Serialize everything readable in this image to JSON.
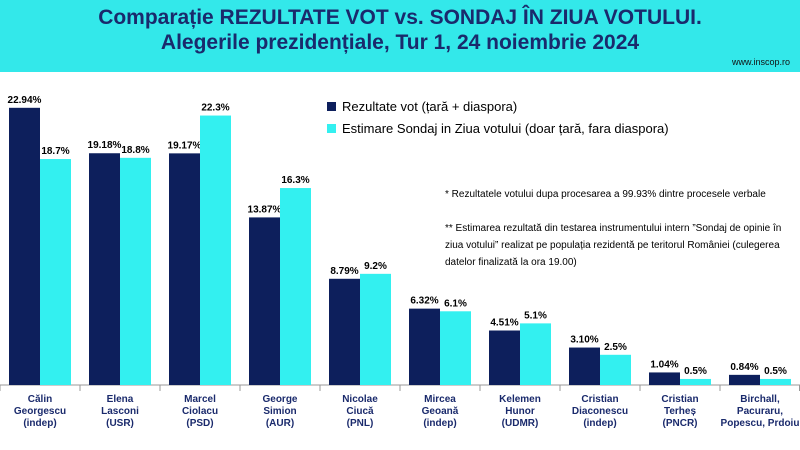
{
  "header": {
    "title_line1": "Comparație REZULTATE VOT vs. SONDAJ ÎN ZIUA VOTULUI.",
    "title_line2": "Alegerile prezidențiale, Tur 1, 24 noiembrie 2024",
    "source": "www.inscop.ro",
    "background_color": "#33e8ea",
    "title_color": "#1a2a6c"
  },
  "notes": {
    "note1": "* Rezultatele votului dupa procesarea a 99.93% dintre procesele verbale",
    "note2": "** Estimarea rezultată din testarea instrumentului intern ”Sondaj de opinie în ziua votului” realizat pe populația rezidentă pe teritorul României (culegerea datelor finalizată la ora 19.00)"
  },
  "chart_data": {
    "type": "bar",
    "categories": [
      [
        "Călin",
        "Georgescu",
        "(indep)"
      ],
      [
        "Elena",
        "Lasconi",
        "(USR)"
      ],
      [
        "Marcel",
        "Ciolacu",
        "(PSD)"
      ],
      [
        "George",
        "Simion",
        "(AUR)"
      ],
      [
        "Nicolae",
        "Ciucă",
        "(PNL)"
      ],
      [
        "Mircea",
        "Geoană",
        "(indep)"
      ],
      [
        "Kelemen",
        "Hunor",
        "(UDMR)"
      ],
      [
        "Cristian",
        "Diaconescu",
        "(indep)"
      ],
      [
        "Cristian",
        "Terheș",
        "(PNCR)"
      ],
      [
        "Birchall,",
        "Pacuraru,",
        "Popescu, Prdoiu"
      ]
    ],
    "series": [
      {
        "name": "Rezultate vot (țară + diaspora)",
        "color": "#0d1f5c",
        "values": [
          22.94,
          19.18,
          19.17,
          13.87,
          8.79,
          6.32,
          4.51,
          3.1,
          1.04,
          0.84
        ],
        "labels": [
          "22.94%",
          "19.18%",
          "19.17%",
          "13.87%",
          "8.79%",
          "6.32%",
          "4.51%",
          "3.10%",
          "1.04%",
          "0.84%"
        ]
      },
      {
        "name": "Estimare Sondaj in Ziua votului (doar țară, fara diaspora)",
        "color": "#33f0f0",
        "values": [
          18.7,
          18.8,
          22.3,
          16.3,
          9.2,
          6.1,
          5.1,
          2.5,
          0.5,
          0.5
        ],
        "labels": [
          "18.7%",
          "18.8%",
          "22.3%",
          "16.3%",
          "9.2%",
          "6.1%",
          "5.1%",
          "2.5%",
          "0.5%",
          "0.5%"
        ]
      }
    ],
    "ylim": [
      0,
      24
    ],
    "grid": false,
    "legend_position": "top-right"
  }
}
